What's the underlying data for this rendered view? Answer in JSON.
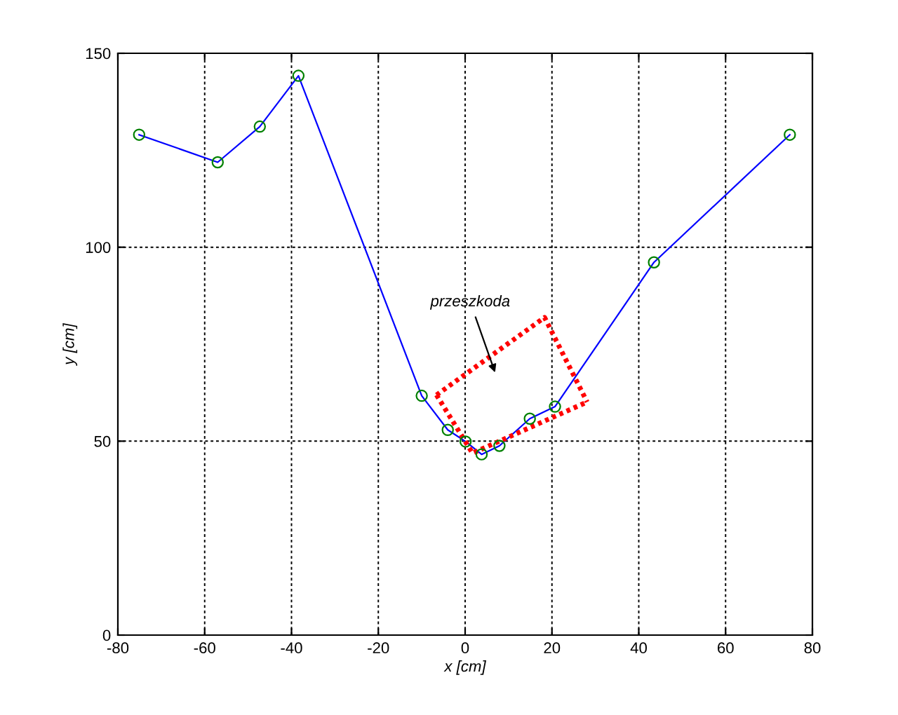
{
  "chart_data": {
    "type": "line",
    "xlabel": "x [cm]",
    "ylabel": "y [cm]",
    "xlim": [
      -80,
      80
    ],
    "ylim": [
      0,
      150
    ],
    "xticks": [
      -80,
      -60,
      -40,
      -20,
      0,
      20,
      40,
      60,
      80
    ],
    "yticks": [
      0,
      50,
      100,
      150
    ],
    "grid": true,
    "series": [
      {
        "color": "#0000ff",
        "marker": "circle",
        "line_style": "solid",
        "colors": [
          "#008000",
          "#008000",
          "#008000",
          "#008000",
          "#008000",
          "#008000",
          "#008000",
          "#008000",
          "#008000",
          "#008000",
          "#008000",
          "#008000",
          "#008000"
        ],
        "x": [
          -75.1,
          -57,
          -47.3,
          -38.4,
          -10,
          -4,
          0.1,
          3.8,
          7.9,
          14.9,
          20.7,
          43.5,
          74.8
        ],
        "values": [
          129,
          121.9,
          131.1,
          144.2,
          61.7,
          52.9,
          49.9,
          46.6,
          48.8,
          55.8,
          58.9,
          96.1,
          129
        ]
      },
      {
        "color": "#ff0000",
        "marker": "none",
        "line_style": "dotted",
        "x": [
          -6.6,
          1.7,
          28.1
        ],
        "values": [
          61.9,
          46.9,
          60.1
        ]
      },
      {
        "color": "#ff0000",
        "marker": "none",
        "line_style": "dotted",
        "x": [
          -6.6,
          18.3,
          28.1
        ],
        "values": [
          61.9,
          81.9,
          60.1
        ]
      }
    ],
    "annotations": [
      "przeszkoda"
    ]
  }
}
